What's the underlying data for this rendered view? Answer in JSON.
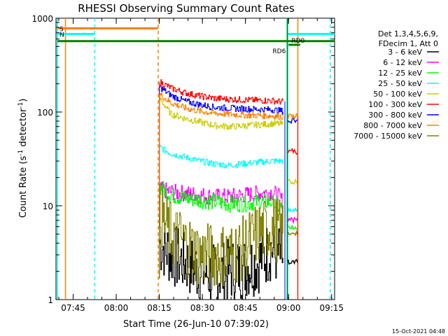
{
  "chart_data": {
    "type": "line",
    "title": "RHESSI Observing Summary Count Rates",
    "xlabel": "Start Time (26-Jun-10 07:39:02)",
    "ylabel_prefix": "Count Rate (s",
    "ylabel_sup": "-1",
    "ylabel_suffix": " detector",
    "ylabel_end": ")",
    "yscale": "log",
    "ylim": [
      1,
      1000
    ],
    "xlim_minutes": [
      0,
      97
    ],
    "x_ticks": [
      {
        "label": "07:45",
        "min": 5.97
      },
      {
        "label": "08:00",
        "min": 20.97
      },
      {
        "label": "08:15",
        "min": 35.97
      },
      {
        "label": "08:30",
        "min": 50.97
      },
      {
        "label": "08:45",
        "min": 65.97
      },
      {
        "label": "09:00",
        "min": 80.97
      },
      {
        "label": "09:15",
        "min": 95.97
      }
    ],
    "y_ticks": [
      {
        "label": "1",
        "value": 1
      },
      {
        "label": "10",
        "value": 10
      },
      {
        "label": "100",
        "value": 100
      },
      {
        "label": "1000",
        "value": 1000
      }
    ],
    "legend_header": [
      "Det 1,3,4,5,6,9,",
      "FDecim 1, Att 0"
    ],
    "legend_position": "right",
    "series": [
      {
        "name": "3 - 6 keV",
        "color": "#000000",
        "x": [
          36,
          40,
          45,
          50,
          55,
          60,
          65,
          70,
          75,
          77,
          79
        ],
        "y": [
          4,
          3,
          2.5,
          2,
          1.8,
          2,
          2.2,
          2.5,
          3.5,
          3,
          2.8
        ]
      },
      {
        "name": "6 - 12 keV",
        "color": "#ff00ff",
        "x": [
          36,
          40,
          45,
          50,
          55,
          60,
          65,
          70,
          75,
          77,
          79
        ],
        "y": [
          15,
          14,
          13.5,
          13,
          12.5,
          12.5,
          13,
          13.5,
          14,
          13,
          11
        ]
      },
      {
        "name": "12 - 25 keV",
        "color": "#00ff00",
        "x": [
          36,
          40,
          45,
          50,
          55,
          60,
          65,
          70,
          75,
          77,
          79
        ],
        "y": [
          16,
          13,
          12,
          11.5,
          11,
          10.5,
          10.5,
          11,
          11,
          10,
          9
        ]
      },
      {
        "name": "25 - 50 keV",
        "color": "#00ffff",
        "x": [
          36,
          40,
          45,
          50,
          55,
          60,
          65,
          70,
          75,
          77,
          79
        ],
        "y": [
          42,
          36,
          33,
          30,
          28,
          27,
          28,
          29,
          30,
          30,
          30
        ]
      },
      {
        "name": "50 - 100 keV",
        "color": "#cccc00",
        "x": [
          36,
          40,
          45,
          50,
          55,
          60,
          65,
          70,
          75,
          77,
          79
        ],
        "y": [
          140,
          95,
          85,
          78,
          72,
          70,
          71,
          73,
          75,
          75,
          74
        ]
      },
      {
        "name": "100 - 300 keV",
        "color": "#ff0000",
        "x": [
          36,
          40,
          45,
          50,
          55,
          60,
          65,
          70,
          75,
          77,
          79
        ],
        "y": [
          210,
          180,
          160,
          148,
          140,
          137,
          135,
          133,
          132,
          130,
          128
        ]
      },
      {
        "name": "300 - 800 keV",
        "color": "#0000ff",
        "x": [
          36,
          40,
          45,
          50,
          55,
          60,
          65,
          70,
          75,
          77,
          79
        ],
        "y": [
          185,
          150,
          130,
          120,
          112,
          110,
          108,
          107,
          106,
          104,
          102
        ]
      },
      {
        "name": "800 - 7000 keV",
        "color": "#ff8000",
        "x": [
          36,
          40,
          45,
          50,
          55,
          60,
          65,
          70,
          75,
          77,
          79
        ],
        "y": [
          155,
          125,
          110,
          102,
          97,
          95,
          93,
          92,
          91,
          90,
          89
        ]
      },
      {
        "name": "7000 - 15000 keV",
        "color": "#808000",
        "x": [
          36,
          40,
          45,
          50,
          55,
          60,
          65,
          70,
          75,
          77,
          79
        ],
        "y": [
          8,
          5,
          4,
          3,
          3,
          3,
          3.5,
          5,
          6,
          5.5,
          5
        ]
      }
    ],
    "after_gap_series": [
      {
        "color": "#ff0000",
        "y": 38
      },
      {
        "color": "#0000ff",
        "y": 80
      },
      {
        "color": "#ff8000",
        "y": 90
      },
      {
        "color": "#cccc00",
        "y": 18
      },
      {
        "color": "#00ffff",
        "y": 9
      },
      {
        "color": "#00ff00",
        "y": 6
      },
      {
        "color": "#ff00ff",
        "y": 7
      },
      {
        "color": "#000000",
        "y": 2.5
      },
      {
        "color": "#808000",
        "y": 5
      }
    ],
    "flag_bars": [
      {
        "label": "S",
        "color": "#ff8000",
        "x_start": 0.5,
        "x_end": 35.5,
        "y": 780
      },
      {
        "label": "N",
        "color": "#00ffff",
        "x_start": 0.5,
        "x_end": 13.5,
        "y": 680
      },
      {
        "label": "",
        "color": "#00ffff",
        "x_start": 80.8,
        "x_end": 97,
        "y": 680
      },
      {
        "label": "",
        "color": "#008000",
        "x_start": 0.5,
        "x_end": 97,
        "y": 570
      },
      {
        "label": "RD0",
        "color": "#008000",
        "x_start": 81,
        "x_end": 85,
        "y": 520,
        "label_above": true
      },
      {
        "label": "RD6",
        "color": "#008000",
        "x_start": 81,
        "x_end": 82,
        "y": 520,
        "label_left": true
      }
    ],
    "vertical_markers": [
      {
        "color": "#00ffff",
        "x": 0.5,
        "style": "solid"
      },
      {
        "color": "#ff8000",
        "x": 3.3,
        "style": "solid"
      },
      {
        "color": "#00ffff",
        "x": 13.5,
        "style": "dashed"
      },
      {
        "color": "#ff8000",
        "x": 35.6,
        "style": "dashed"
      },
      {
        "color": "#00ffff",
        "x": 80.4,
        "style": "solid"
      },
      {
        "color": "#008000",
        "x": 80.6,
        "style": "solid"
      },
      {
        "color": "#ff8000",
        "x": 84.2,
        "style": "solid"
      },
      {
        "color": "#00ffff",
        "x": 95.5,
        "style": "dashed"
      }
    ]
  },
  "footer_date": "15-Oct-2021 04:48"
}
